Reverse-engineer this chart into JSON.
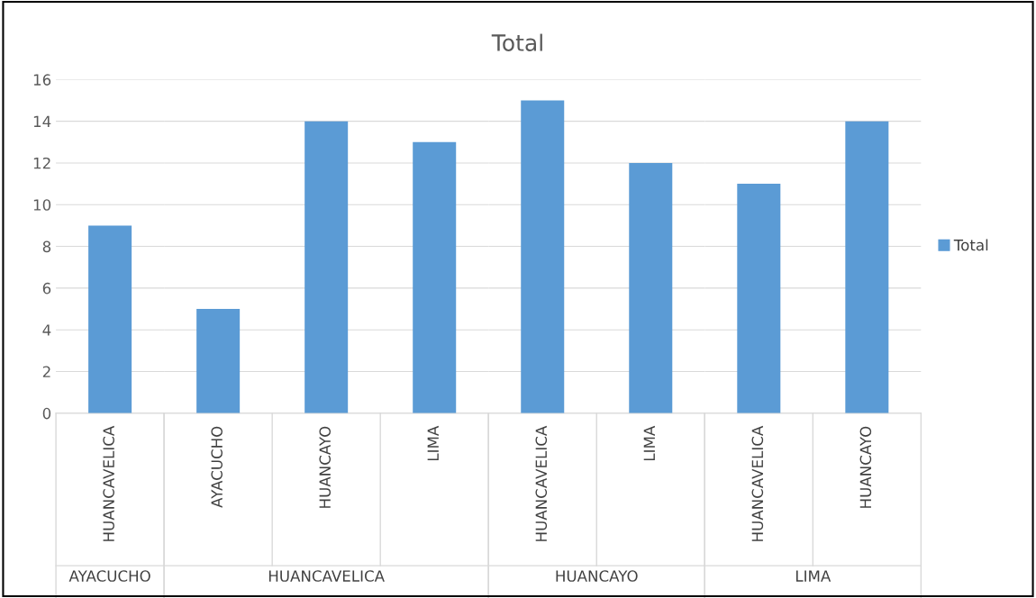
{
  "chart_data": [
    {
      "type": "bar",
      "xlabel": "AYACUCHO",
      "categories": [
        "HUANCAVELICA"
      ],
      "series": [
        {
          "color": "#5b9bd5",
          "values": [
            9
          ]
        }
      ],
      "ylim": [
        0,
        16
      ],
      "yticks": [
        0,
        2,
        4,
        6,
        8,
        10,
        12,
        14,
        16
      ],
      "grid": "y"
    },
    {
      "type": "bar",
      "xlabel": "HUANCAVELICA",
      "categories": [
        "AYACUCHO",
        "HUANCAYO",
        "LIMA"
      ],
      "series": [
        {
          "color": "#5b9bd5",
          "values": [
            5,
            14,
            13
          ]
        }
      ],
      "ylim": [
        0,
        16
      ],
      "yticks": [
        0,
        2,
        4,
        6,
        8,
        10,
        12,
        14,
        16
      ],
      "grid": "y",
      "tick_labels": "x"
    },
    {
      "type": "bar",
      "title": "Total",
      "xlabel": "HUANCAYO",
      "categories": [
        "HUANCAVELICA",
        "LIMA"
      ],
      "series": [
        {
          "color": "#5b9bd5",
          "values": [
            15,
            12
          ]
        }
      ],
      "ylim": [
        0,
        16
      ],
      "yticks": [
        0,
        2,
        4,
        6,
        8,
        10,
        12,
        14,
        16
      ],
      "grid": "y",
      "tick_labels": "x"
    },
    {
      "type": "bar",
      "xlabel": "LIMA",
      "categories": [
        "HUANCAVELICA",
        "HUANCAYO"
      ],
      "series": [
        {
          "name": "Total",
          "color": "#5b9bd5",
          "values": [
            11,
            14
          ]
        }
      ],
      "ylim": [
        0,
        16
      ],
      "yticks": [
        0,
        2,
        4,
        6,
        8,
        10,
        12,
        14,
        16
      ],
      "grid": "y",
      "tick_labels": "x",
      "legend": "right"
    }
  ]
}
